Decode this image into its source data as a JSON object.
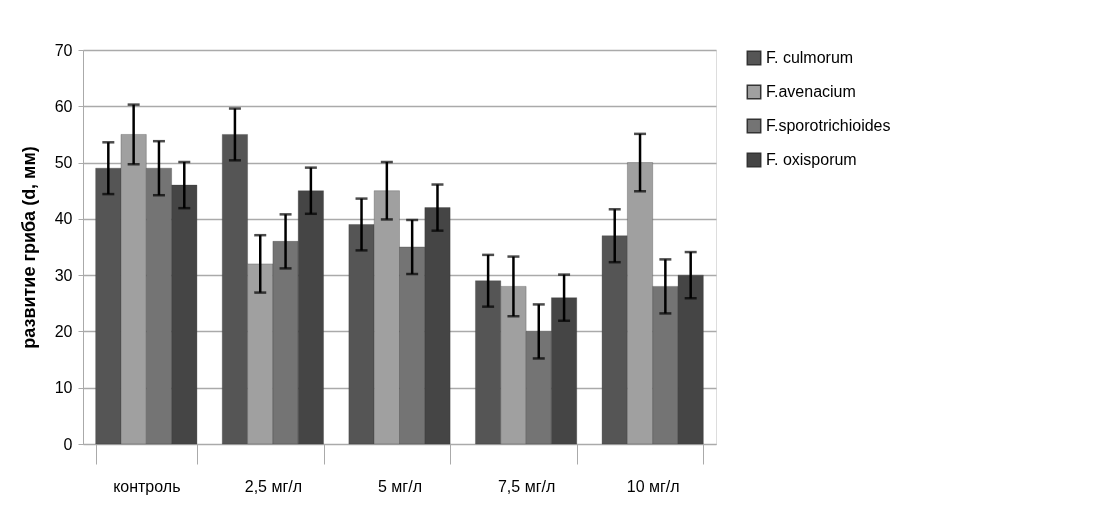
{
  "chart_data": {
    "type": "bar",
    "ylabel": "развитие гриба (d, мм)",
    "categories": [
      "контроль",
      "2,5 мг/л",
      "5 мг/л",
      "7,5 мг/л",
      "10 мг/л"
    ],
    "series": [
      {
        "name": "F. culmorum",
        "color": "#555555",
        "values": [
          49,
          55,
          39,
          29,
          37
        ],
        "errors": [
          4.6,
          4.6,
          4.6,
          4.6,
          4.7
        ]
      },
      {
        "name": "F.avenacium",
        "color": "#a0a0a0",
        "values": [
          55,
          32,
          45,
          28,
          50
        ],
        "errors": [
          5.3,
          5.1,
          5.1,
          5.3,
          5.1
        ]
      },
      {
        "name": "F.sporotrichioides",
        "color": "#747474",
        "values": [
          49,
          36,
          35,
          20,
          28
        ],
        "errors": [
          4.8,
          4.8,
          4.8,
          4.8,
          4.8
        ]
      },
      {
        "name": "F. oxisporum",
        "color": "#454545",
        "values": [
          46,
          45,
          42,
          26,
          30
        ],
        "errors": [
          4.1,
          4.1,
          4.1,
          4.1,
          4.1
        ]
      }
    ],
    "ylim": [
      0,
      70
    ],
    "yticks": [
      0,
      10,
      20,
      30,
      40,
      50,
      60,
      70
    ],
    "grid": "y",
    "legend": "right"
  }
}
